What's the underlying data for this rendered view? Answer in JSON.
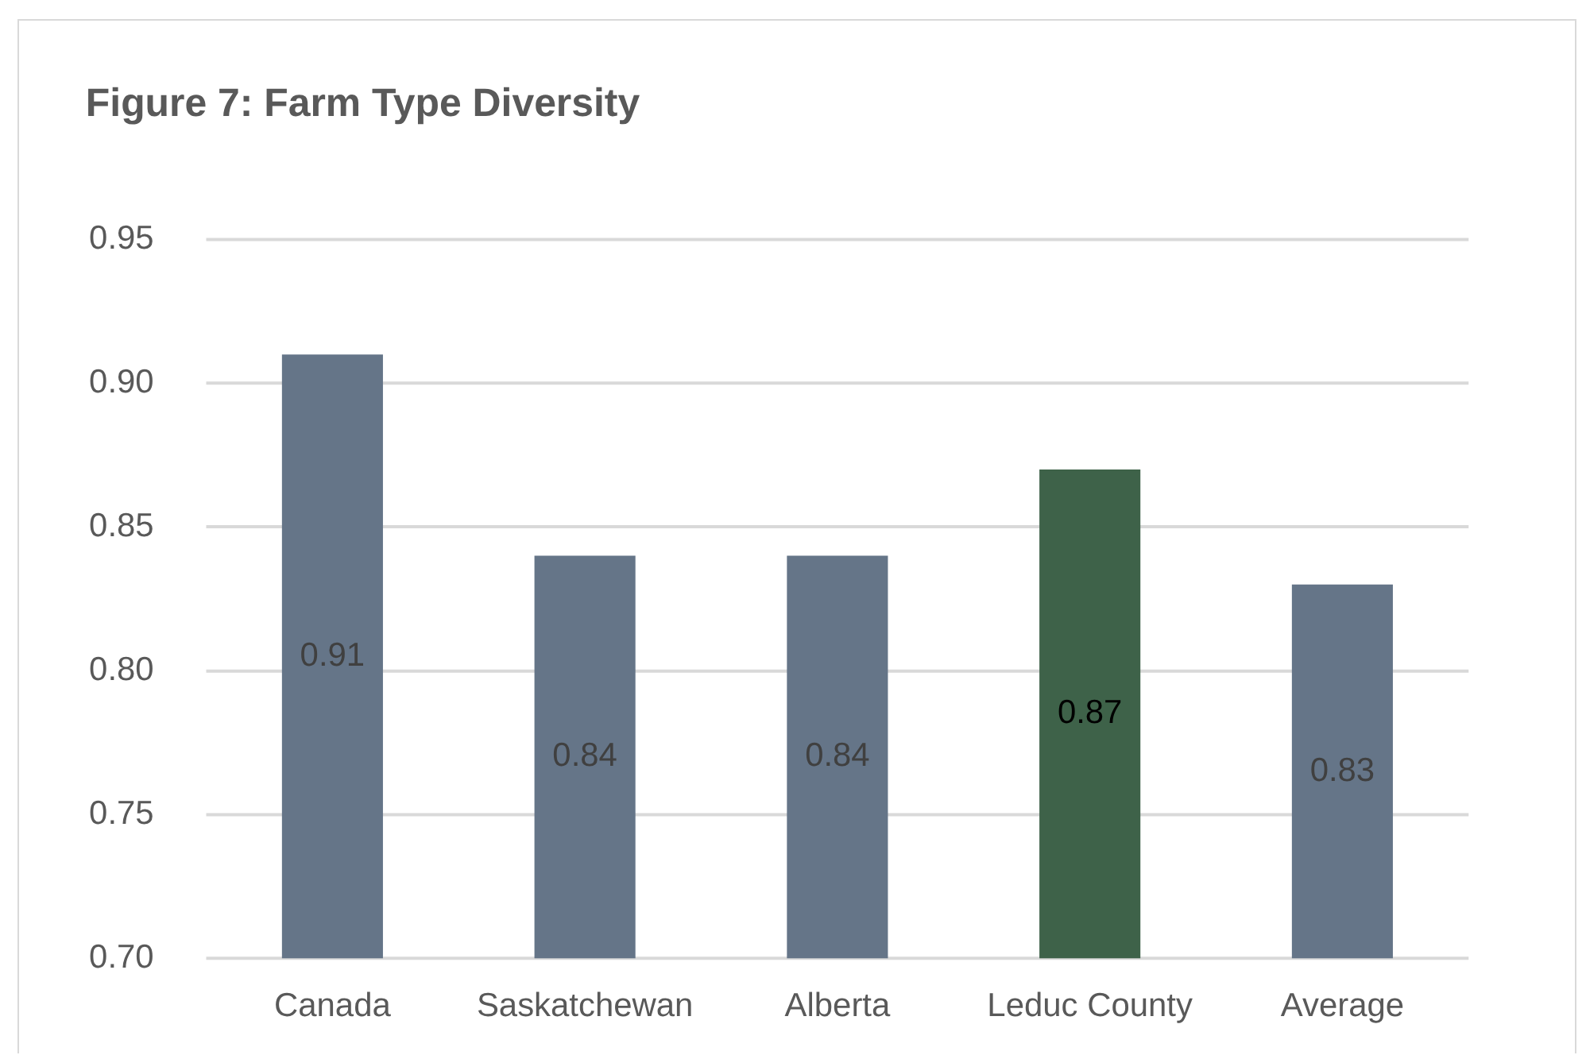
{
  "chart_data": {
    "type": "bar",
    "title": "Figure 7: Farm Type Diversity",
    "categories": [
      "Canada",
      "Saskatchewan",
      "Alberta",
      "Leduc County",
      "Average"
    ],
    "values": [
      0.91,
      0.84,
      0.84,
      0.87,
      0.83
    ],
    "colors": [
      "#657588",
      "#657588",
      "#657588",
      "#3e6249",
      "#657588"
    ],
    "ylim": [
      0.7,
      0.95
    ],
    "yticks": [
      {
        "value": 0.7,
        "label": "0.70"
      },
      0.75,
      {
        "value": 0.8,
        "label": "0.80"
      },
      0.85,
      {
        "value": 0.9,
        "label": "0.90"
      },
      0.95
    ],
    "grid": "y",
    "data_labels": true
  }
}
